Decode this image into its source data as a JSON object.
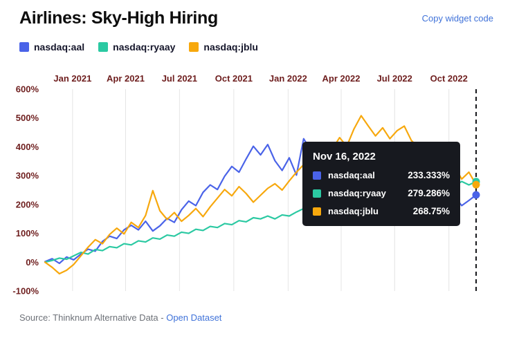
{
  "header": {
    "title": "Airlines: Sky-High Hiring",
    "copy_link": "Copy widget code"
  },
  "legend": [
    {
      "label": "nasdaq:aal",
      "color": "#4a63e8"
    },
    {
      "label": "nasdaq:ryaay",
      "color": "#2bc9a2"
    },
    {
      "label": "nasdaq:jblu",
      "color": "#f7a80d"
    }
  ],
  "tooltip": {
    "date": "Nov 16, 2022",
    "rows": [
      {
        "label": "nasdaq:aal",
        "value": "233.333%",
        "color": "#4a63e8"
      },
      {
        "label": "nasdaq:ryaay",
        "value": "279.286%",
        "color": "#2bc9a2"
      },
      {
        "label": "nasdaq:jblu",
        "value": "268.75%",
        "color": "#f7a80d"
      }
    ]
  },
  "footer": {
    "source_prefix": "Source: Thinknum Alternative Data - ",
    "link_label": "Open Dataset"
  },
  "chart_data": {
    "type": "line",
    "title": "Airlines: Sky-High Hiring",
    "ylim": [
      -100,
      600
    ],
    "y_tick_step": 100,
    "y_tick_suffix": "%",
    "grid": "vertical-only",
    "legend_position": "top-left",
    "x_ticks": [
      {
        "label": "Jan 2021",
        "f": 0.064
      },
      {
        "label": "Apr 2021",
        "f": 0.187
      },
      {
        "label": "Jul 2021",
        "f": 0.312
      },
      {
        "label": "Oct 2021",
        "f": 0.438
      },
      {
        "label": "Jan 2022",
        "f": 0.564
      },
      {
        "label": "Apr 2022",
        "f": 0.687
      },
      {
        "label": "Jul 2022",
        "f": 0.811
      },
      {
        "label": "Oct 2022",
        "f": 0.937
      }
    ],
    "marker_date": "Nov 16, 2022",
    "marker_f": 1.0,
    "series": [
      {
        "name": "nasdaq:aal",
        "color": "#4a63e8",
        "end_value": 233.333,
        "values": [
          2,
          12,
          -4,
          18,
          8,
          28,
          45,
          38,
          72,
          90,
          82,
          112,
          128,
          112,
          142,
          108,
          126,
          152,
          138,
          182,
          212,
          196,
          242,
          268,
          252,
          298,
          332,
          312,
          358,
          402,
          372,
          408,
          352,
          318,
          362,
          302,
          428,
          388,
          312,
          342,
          282,
          312,
          292,
          322,
          282,
          302,
          272,
          292,
          252,
          272,
          242,
          262,
          232,
          252,
          222,
          238,
          208,
          228,
          196,
          214,
          233.333
        ]
      },
      {
        "name": "nasdaq:ryaay",
        "color": "#2bc9a2",
        "end_value": 279.286,
        "values": [
          0,
          6,
          14,
          10,
          22,
          34,
          28,
          44,
          40,
          54,
          50,
          64,
          60,
          74,
          70,
          84,
          80,
          94,
          90,
          104,
          100,
          114,
          110,
          124,
          120,
          134,
          130,
          144,
          140,
          154,
          150,
          160,
          150,
          164,
          160,
          174,
          186,
          180,
          194,
          188,
          200,
          194,
          206,
          200,
          214,
          208,
          224,
          218,
          234,
          228,
          244,
          238,
          254,
          248,
          264,
          258,
          270,
          264,
          280,
          268,
          279.286
        ]
      },
      {
        "name": "nasdaq:jblu",
        "color": "#f7a80d",
        "end_value": 268.75,
        "values": [
          0,
          -18,
          -40,
          -28,
          -8,
          22,
          52,
          78,
          64,
          96,
          118,
          98,
          138,
          120,
          162,
          248,
          178,
          148,
          172,
          142,
          162,
          186,
          158,
          192,
          222,
          252,
          230,
          262,
          238,
          208,
          232,
          256,
          272,
          250,
          282,
          312,
          338,
          298,
          332,
          362,
          392,
          432,
          402,
          462,
          508,
          472,
          438,
          466,
          428,
          456,
          472,
          422,
          398,
          378,
          348,
          328,
          308,
          332,
          288,
          312,
          268.75
        ]
      }
    ]
  }
}
